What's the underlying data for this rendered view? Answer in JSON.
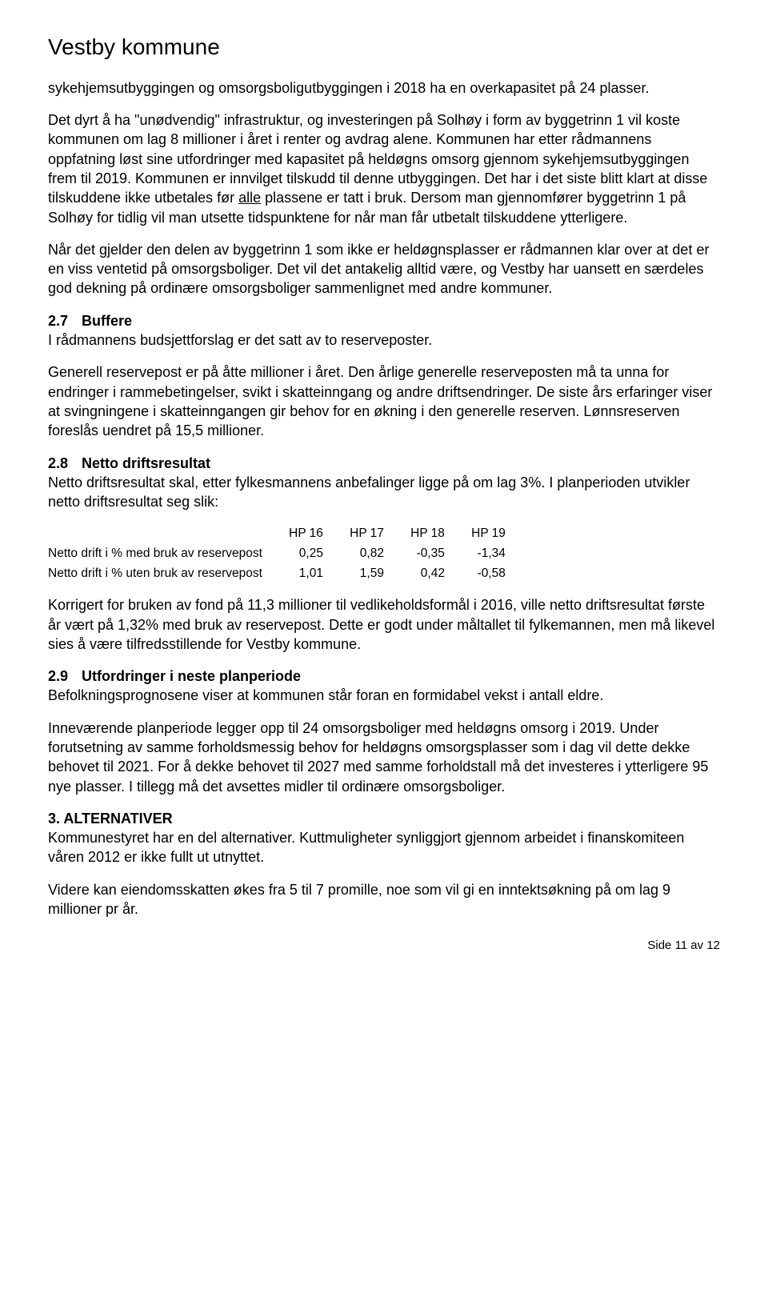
{
  "header": {
    "title": "Vestby kommune"
  },
  "p1": "sykehjemsutbyggingen og omsorgsboligutbyggingen i 2018 ha en overkapasitet på 24 plasser.",
  "p2a": "Det dyrt å ha \"unødvendig\" infrastruktur, og investeringen på Solhøy i form av byggetrinn 1 vil koste kommunen om lag 8 millioner i året i renter og avdrag alene. Kommunen har etter rådmannens oppfatning løst sine utfordringer med kapasitet på heldøgns omsorg gjennom sykehjemsutbyggingen frem til 2019. Kommunen er innvilget tilskudd til denne utbyggingen. Det har i det siste blitt klart at disse tilskuddene ikke utbetales før ",
  "p2_underline": "alle",
  "p2b": " plassene er tatt i bruk. Dersom man gjennomfører byggetrinn 1 på Solhøy for tidlig vil man utsette tidspunktene for når man får utbetalt tilskuddene ytterligere.",
  "p3": "Når det gjelder den delen av byggetrinn 1 som ikke er heldøgnsplasser er rådmannen klar over at det er en viss ventetid på omsorgsboliger. Det vil det antakelig alltid være, og Vestby har uansett en særdeles god dekning på ordinære omsorgsboliger sammenlignet med andre kommuner.",
  "sec27": {
    "num": "2.7",
    "title": "Buffere"
  },
  "p27a": "I rådmannens budsjettforslag er det satt av to reserveposter.",
  "p27b": "Generell reservepost er på åtte millioner i året. Den årlige generelle reserveposten må ta unna for endringer i rammebetingelser, svikt i skatteinngang og andre driftsendringer. De siste års erfaringer viser at svingningene i skatteinngangen gir behov for en økning i den generelle reserven. Lønnsreserven foreslås uendret på 15,5 millioner.",
  "sec28": {
    "num": "2.8",
    "title": "Netto driftsresultat"
  },
  "p28a": "Netto driftsresultat skal, etter fylkesmannens anbefalinger ligge på om lag 3%. I planperioden utvikler netto driftsresultat seg slik:",
  "table": {
    "columns": [
      "",
      "HP 16",
      "HP 17",
      "HP 18",
      "HP 19"
    ],
    "rows": [
      [
        "Netto drift i % med bruk av reservepost",
        "0,25",
        "0,82",
        "-0,35",
        "-1,34"
      ],
      [
        "Netto drift i % uten bruk av reservepost",
        "1,01",
        "1,59",
        "0,42",
        "-0,58"
      ]
    ]
  },
  "p28b": "Korrigert for bruken av fond på 11,3 millioner til vedlikeholdsformål i 2016, ville netto driftsresultat første år vært på 1,32% med bruk av reservepost. Dette er godt under måltallet til fylkemannen, men må likevel sies å være tilfredsstillende for Vestby kommune.",
  "sec29": {
    "num": "2.9",
    "title": "Utfordringer i neste planperiode"
  },
  "p29a": "Befolkningsprognosene viser at kommunen står foran en formidabel vekst i antall eldre.",
  "p29b": "Inneværende planperiode legger opp til 24 omsorgsboliger med heldøgns omsorg i 2019. Under forutsetning av samme forholdsmessig behov for heldøgns omsorgsplasser som i dag vil dette dekke behovet til 2021. For å dekke behovet til 2027 med samme forholdstall må det investeres i ytterligere 95 nye plasser. I tillegg må det avsettes midler til ordinære omsorgsboliger.",
  "sec3": {
    "title": "3. ALTERNATIVER"
  },
  "p3a": "Kommunestyret har en del alternativer. Kuttmuligheter synliggjort gjennom arbeidet i finanskomiteen våren 2012 er ikke fullt ut utnyttet.",
  "p3b": "Videre kan eiendomsskatten økes fra 5 til 7 promille, noe som vil gi en inntektsøkning på om lag 9 millioner pr år.",
  "footer": "Side 11 av 12"
}
